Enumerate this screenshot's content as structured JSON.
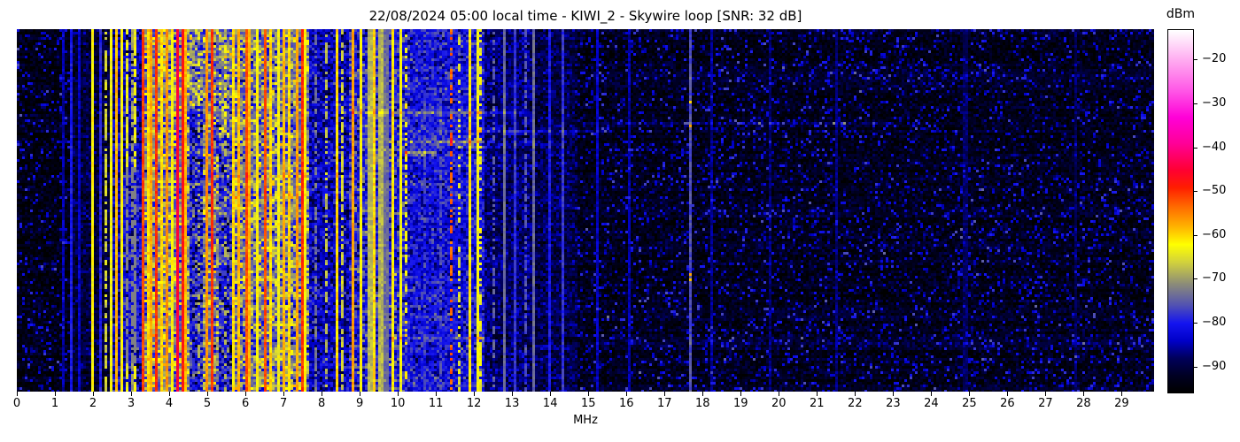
{
  "title": "22/08/2024 05:00 local time - KIWI_2 - Skywire loop [SNR: 32 dB]",
  "header": {
    "date": "22/08/2024",
    "time": "05:00",
    "time_qualifier": "local time",
    "station": "KIWI_2",
    "antenna": "Skywire loop",
    "snr": "SNR: 32 dB"
  },
  "xaxis": {
    "label": "MHz",
    "ticks": [
      {
        "v": 0,
        "label": "0"
      },
      {
        "v": 1,
        "label": "1"
      },
      {
        "v": 2,
        "label": "2"
      },
      {
        "v": 3,
        "label": "3"
      },
      {
        "v": 4,
        "label": "4"
      },
      {
        "v": 5,
        "label": "5"
      },
      {
        "v": 6,
        "label": "6"
      },
      {
        "v": 7,
        "label": "7"
      },
      {
        "v": 8,
        "label": "8"
      },
      {
        "v": 9,
        "label": "9"
      },
      {
        "v": 10,
        "label": "10"
      },
      {
        "v": 11,
        "label": "11"
      },
      {
        "v": 12,
        "label": "12"
      },
      {
        "v": 13,
        "label": "13"
      },
      {
        "v": 14,
        "label": "14"
      },
      {
        "v": 15,
        "label": "15"
      },
      {
        "v": 16,
        "label": "16"
      },
      {
        "v": 17,
        "label": "17"
      },
      {
        "v": 18,
        "label": "18"
      },
      {
        "v": 19,
        "label": "19"
      },
      {
        "v": 20,
        "label": "20"
      },
      {
        "v": 21,
        "label": "21"
      },
      {
        "v": 22,
        "label": "22"
      },
      {
        "v": 23,
        "label": "23"
      },
      {
        "v": 24,
        "label": "24"
      },
      {
        "v": 25,
        "label": "25"
      },
      {
        "v": 26,
        "label": "26"
      },
      {
        "v": 27,
        "label": "27"
      },
      {
        "v": 28,
        "label": "28"
      },
      {
        "v": 29,
        "label": "29"
      }
    ]
  },
  "colorbar": {
    "label": "dBm",
    "vmin": -95.7,
    "vmax": -13.1,
    "ticks": [
      {
        "v": -20,
        "label": "−20"
      },
      {
        "v": -30,
        "label": "−30"
      },
      {
        "v": -40,
        "label": "−40"
      },
      {
        "v": -50,
        "label": "−50"
      },
      {
        "v": -60,
        "label": "−60"
      },
      {
        "v": -70,
        "label": "−70"
      },
      {
        "v": -80,
        "label": "−80"
      },
      {
        "v": -90,
        "label": "−90"
      }
    ]
  },
  "chart_data": {
    "type": "heatmap",
    "title": "22/08/2024 05:00 local time - KIWI_2 - Skywire loop [SNR: 32 dB]",
    "xlabel": "MHz",
    "ylabel": "",
    "x_range": [
      0,
      29.85
    ],
    "grid": false,
    "legend_position": "colorbar-right",
    "color_scale": {
      "label": "dBm",
      "range": [
        -95.7,
        -13.1
      ],
      "stops": [
        [
          -95.7,
          "#000000"
        ],
        [
          -92,
          "#000022"
        ],
        [
          -88,
          "#00005a"
        ],
        [
          -84,
          "#0000c8"
        ],
        [
          -80,
          "#1414f0"
        ],
        [
          -76,
          "#5050b4"
        ],
        [
          -71,
          "#8c8c78"
        ],
        [
          -66,
          "#d2d23c"
        ],
        [
          -62,
          "#ffff00"
        ],
        [
          -58,
          "#ffb400"
        ],
        [
          -53,
          "#ff6400"
        ],
        [
          -49,
          "#ff1e00"
        ],
        [
          -45,
          "#ff0032"
        ],
        [
          -39,
          "#ff0096"
        ],
        [
          -33,
          "#ff00d7"
        ],
        [
          -27,
          "#ff55e6"
        ],
        [
          -20,
          "#ffaaf0"
        ],
        [
          -13.1,
          "#ffffff"
        ]
      ]
    },
    "noise_floor_bands": [
      {
        "f0": 0.0,
        "f1": 1.4,
        "level": -93.5,
        "noise": 2.3
      },
      {
        "f0": 1.4,
        "f1": 2.42,
        "level": -90.5,
        "noise": 2.8
      },
      {
        "f0": 2.42,
        "f1": 3.25,
        "level": -84,
        "noise": 4.5
      },
      {
        "f0": 3.25,
        "f1": 4.55,
        "level": -71,
        "noise": 6.5
      },
      {
        "f0": 4.55,
        "f1": 7.65,
        "level": -72.5,
        "noise": 6.5
      },
      {
        "f0": 7.65,
        "f1": 8.7,
        "level": -84,
        "noise": 4.0
      },
      {
        "f0": 8.7,
        "f1": 10.25,
        "level": -79.5,
        "noise": 5.0
      },
      {
        "f0": 10.25,
        "f1": 12.25,
        "level": -81,
        "noise": 3.8
      },
      {
        "f0": 12.25,
        "f1": 13.6,
        "level": -87.5,
        "noise": 3.2
      },
      {
        "f0": 13.6,
        "f1": 14.7,
        "level": -89,
        "noise": 3.0
      },
      {
        "f0": 14.7,
        "f1": 29.85,
        "level": -92.8,
        "noise": 2.4
      }
    ],
    "signal_lines": [
      [
        1.19,
        -85
      ],
      [
        1.45,
        -80
      ],
      [
        1.62,
        -84
      ],
      [
        1.98,
        -62
      ],
      [
        2.17,
        -79
      ],
      [
        2.32,
        -66,
        0.05,
        0.7
      ],
      [
        2.5,
        -63
      ],
      [
        2.62,
        -58
      ],
      [
        2.75,
        -62
      ],
      [
        2.88,
        -64,
        0.05,
        0.8
      ],
      [
        3.02,
        -70,
        0.05,
        0.7
      ],
      [
        3.12,
        -63,
        0.05,
        0.75
      ],
      [
        3.3,
        -51
      ],
      [
        3.42,
        -60
      ],
      [
        3.55,
        -57
      ],
      [
        3.66,
        -50
      ],
      [
        3.8,
        -60
      ],
      [
        3.92,
        -56
      ],
      [
        4.05,
        -62
      ],
      [
        4.2,
        -45,
        0.07
      ],
      [
        4.33,
        -48
      ],
      [
        4.45,
        -58
      ],
      [
        4.75,
        -64,
        0.05,
        0.3
      ],
      [
        5.0,
        -56
      ],
      [
        5.15,
        -50
      ],
      [
        5.45,
        -63,
        0.05,
        0.35
      ],
      [
        5.7,
        -60
      ],
      [
        5.85,
        -58
      ],
      [
        6.0,
        -52
      ],
      [
        6.12,
        -58
      ],
      [
        6.3,
        -62
      ],
      [
        6.5,
        -52
      ],
      [
        6.68,
        -60
      ],
      [
        6.85,
        -63
      ],
      [
        7.0,
        -58
      ],
      [
        7.18,
        -60
      ],
      [
        7.35,
        -57
      ],
      [
        7.5,
        -50
      ],
      [
        7.6,
        -62
      ],
      [
        7.82,
        -73,
        0.05,
        0.6
      ],
      [
        8.1,
        -68,
        0.05,
        0.5
      ],
      [
        8.38,
        -60
      ],
      [
        8.55,
        -66,
        0.05,
        0.6
      ],
      [
        8.8,
        -57,
        0.035
      ],
      [
        9.05,
        -62
      ],
      [
        9.25,
        -68,
        0.12
      ],
      [
        9.4,
        -60
      ],
      [
        9.55,
        -68,
        0.1
      ],
      [
        9.7,
        -74,
        0.08
      ],
      [
        9.9,
        -61
      ],
      [
        10.05,
        -63
      ],
      [
        10.2,
        -62,
        0.05,
        0.45
      ],
      [
        10.7,
        -77,
        0.05,
        0.4
      ],
      [
        11.1,
        -76,
        0.05,
        0.4
      ],
      [
        11.38,
        -53,
        0.05,
        0.55
      ],
      [
        11.58,
        -65,
        0.05,
        0.4
      ],
      [
        11.92,
        -61
      ],
      [
        12.08,
        -63
      ],
      [
        12.17,
        -63,
        0.05,
        0.5
      ],
      [
        12.55,
        -75,
        0.05,
        0.5
      ],
      [
        12.8,
        -74
      ],
      [
        13.1,
        -78
      ],
      [
        13.35,
        -76,
        0.05,
        0.6
      ],
      [
        13.57,
        -74
      ],
      [
        14.0,
        -80
      ],
      [
        14.3,
        -78
      ],
      [
        15.25,
        -84
      ],
      [
        16.1,
        -85
      ],
      [
        17.65,
        -76,
        0.045
      ],
      [
        17.65,
        -58,
        0.045,
        0.07
      ],
      [
        18.25,
        -86
      ],
      [
        19.8,
        -87
      ],
      [
        21.5,
        -87
      ],
      [
        24.9,
        -88
      ],
      [
        27.8,
        -88
      ]
    ],
    "time_patches": [
      {
        "f0": 2.8,
        "f1": 3.25,
        "t0": 0.38,
        "t1": 0.92,
        "base": -81.5,
        "cap": -72
      },
      {
        "f0": 4.56,
        "f1": 4.9,
        "t0": 0.22,
        "t1": 1.0,
        "base": -80.5,
        "cap": -68
      },
      {
        "f0": 5.28,
        "f1": 5.66,
        "t0": 0.3,
        "t1": 1.0,
        "base": -80.5,
        "cap": -68
      }
    ],
    "horizontal_streaks": [
      {
        "t": 0.228,
        "f0": 8.6,
        "f1": 13.4,
        "add": 6
      },
      {
        "t": 0.258,
        "f0": 15.0,
        "f1": 23.0,
        "add": 4
      },
      {
        "t": 0.278,
        "f0": 10.2,
        "f1": 15.6,
        "add": 5
      },
      {
        "t": 0.31,
        "f0": 10.3,
        "f1": 12.3,
        "add": 8
      },
      {
        "t": 0.34,
        "f0": 10.2,
        "f1": 11.0,
        "add": 11
      },
      {
        "t": 0.318,
        "f0": 12.3,
        "f1": 14.6,
        "add": 4
      },
      {
        "t": 0.402,
        "f0": 5.1,
        "f1": 8.8,
        "add": 4
      },
      {
        "t": 0.455,
        "f0": 5.1,
        "f1": 8.8,
        "add": 3
      },
      {
        "t": 0.13,
        "f0": 15.0,
        "f1": 29.8,
        "add": 3
      },
      {
        "t": 0.85,
        "f0": 9.8,
        "f1": 12.3,
        "add": 6
      },
      {
        "t": 0.87,
        "f0": 15.0,
        "f1": 29.8,
        "add": 3
      }
    ]
  }
}
